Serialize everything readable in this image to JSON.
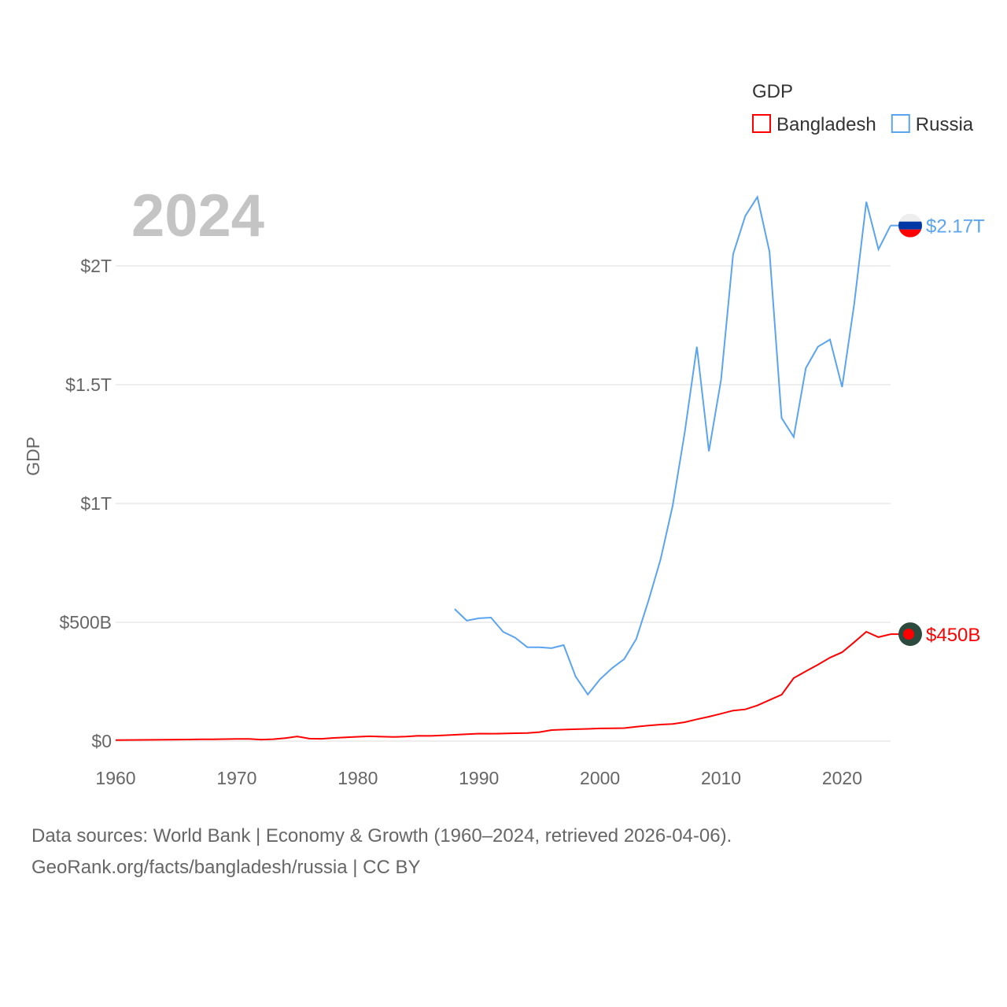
{
  "chart_data": {
    "type": "line",
    "ylabel": "GDP",
    "current_year_label": "2024",
    "legend": {
      "title": "GDP",
      "placement": "top-right"
    },
    "xlim": [
      1960,
      2024
    ],
    "ylim": [
      0,
      2350000000000
    ],
    "xticks": [
      1960,
      1970,
      1980,
      1990,
      2000,
      2010,
      2020
    ],
    "xtick_labels": [
      "1960",
      "1970",
      "1980",
      "1990",
      "2000",
      "2010",
      "2020"
    ],
    "yticks": [
      0,
      500000000000,
      1000000000000,
      1500000000000,
      2000000000000
    ],
    "ytick_labels": [
      "$0",
      "$500B",
      "$1T",
      "$1.5T",
      "$2T"
    ],
    "grid": true,
    "series": [
      {
        "name": "Bangladesh",
        "color": "#ff0000",
        "end_label": "$450B",
        "start_year": 1960,
        "values_billion": [
          4.3,
          4.8,
          5.1,
          5.3,
          5.9,
          6.2,
          6.7,
          7.2,
          7.7,
          8.4,
          9.0,
          8.9,
          6.3,
          8.1,
          12.5,
          19.4,
          10.1,
          9.7,
          13.3,
          15.6,
          18.1,
          20.2,
          18.6,
          17.6,
          18.9,
          22.3,
          21.8,
          24.1,
          26.6,
          29.1,
          31.6,
          31.0,
          31.7,
          33.2,
          33.8,
          37.9,
          46.4,
          48.2,
          50.0,
          51.3,
          53.4,
          54.0,
          54.7,
          60.2,
          65.1,
          69.4,
          71.8,
          79.6,
          91.6,
          102.5,
          115.3,
          128.6,
          133.4,
          150.0,
          172.9,
          195.1,
          265.2,
          293.8,
          321.4,
          351.2,
          374.0,
          416.3,
          460.2,
          437.4,
          450.1
        ]
      },
      {
        "name": "Russia",
        "color": "#5ba4f0",
        "end_label": "$2.17T",
        "start_year": 1988,
        "values_billion": [
          556,
          507,
          517,
          520,
          460,
          435,
          395,
          395,
          391,
          404,
          271,
          196,
          260,
          307,
          345,
          430,
          590,
          764,
          990,
          1300,
          1660,
          1220,
          1520,
          2050,
          2210,
          2290,
          2060,
          1360,
          1280,
          1570,
          1660,
          1690,
          1490,
          1840,
          2270,
          2070,
          2170
        ]
      }
    ]
  },
  "footer": {
    "line1": "Data sources: World Bank | Economy & Growth (1960–2024, retrieved 2026-04-06).",
    "line2": "GeoRank.org/facts/bangladesh/russia | CC BY"
  }
}
